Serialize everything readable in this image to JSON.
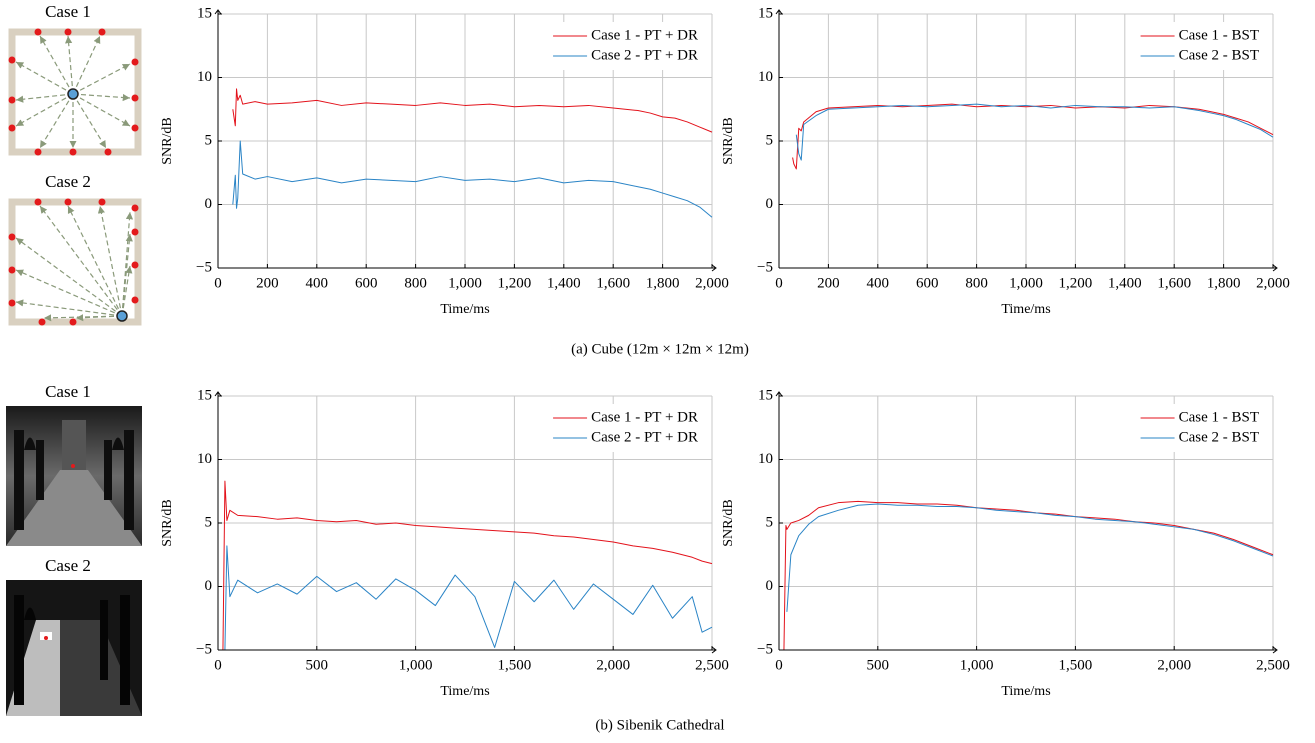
{
  "panels": [
    {
      "caption": "(a)  Cube (12m × 12m × 12m)",
      "cases": [
        "Case 1",
        "Case 2"
      ]
    },
    {
      "caption": "(b)  Sibenik Cathedral",
      "cases": [
        "Case 1",
        "Case 2"
      ]
    }
  ],
  "chart_data": [
    {
      "type": "line",
      "xlabel": "Time/ms",
      "ylabel": "SNR/dB",
      "grid": true,
      "legend": "top-right",
      "xlim": [
        0,
        2000
      ],
      "ylim": [
        -5,
        15
      ],
      "xticks": [
        0,
        200,
        400,
        600,
        800,
        {
          "value": 1000,
          "label": "1,000"
        },
        {
          "value": 1200,
          "label": "1,200"
        },
        {
          "value": 1400,
          "label": "1,400"
        },
        {
          "value": 1600,
          "label": "1,600"
        },
        {
          "value": 1800,
          "label": "1,800"
        },
        {
          "value": 2000,
          "label": "2,000"
        }
      ],
      "yticks": [
        {
          "value": -5,
          "label": "−5"
        },
        0,
        5,
        10,
        15
      ],
      "x": [
        60,
        70,
        75,
        80,
        90,
        100,
        150,
        200,
        300,
        400,
        500,
        600,
        700,
        800,
        900,
        1000,
        1100,
        1200,
        1300,
        1400,
        1500,
        1600,
        1700,
        1750,
        1800,
        1850,
        1900,
        1950,
        2000
      ],
      "series": [
        {
          "name": "Case 1 - PT + DR",
          "color": "#e3121b",
          "values": [
            7.5,
            6.2,
            9.1,
            8.2,
            8.6,
            7.9,
            8.1,
            7.9,
            8.0,
            8.2,
            7.8,
            8.0,
            7.9,
            7.8,
            8.0,
            7.8,
            7.9,
            7.7,
            7.8,
            7.7,
            7.8,
            7.6,
            7.4,
            7.2,
            6.9,
            6.8,
            6.5,
            6.1,
            5.7
          ]
        },
        {
          "name": "Case 2 - PT + DR",
          "color": "#2a84c6",
          "values": [
            0,
            2.3,
            -0.3,
            0.5,
            5.0,
            2.4,
            2.0,
            2.2,
            1.8,
            2.1,
            1.7,
            2.0,
            1.9,
            1.8,
            2.2,
            1.9,
            2.0,
            1.8,
            2.1,
            1.7,
            1.9,
            1.8,
            1.4,
            1.2,
            0.9,
            0.6,
            0.3,
            -0.2,
            -1.0
          ]
        }
      ]
    },
    {
      "type": "line",
      "xlabel": "Time/ms",
      "ylabel": "SNR/dB",
      "grid": true,
      "legend": "top-right",
      "xlim": [
        0,
        2000
      ],
      "ylim": [
        -5,
        15
      ],
      "xticks": [
        0,
        200,
        400,
        600,
        800,
        {
          "value": 1000,
          "label": "1,000"
        },
        {
          "value": 1200,
          "label": "1,200"
        },
        {
          "value": 1400,
          "label": "1,400"
        },
        {
          "value": 1600,
          "label": "1,600"
        },
        {
          "value": 1800,
          "label": "1,800"
        },
        {
          "value": 2000,
          "label": "2,000"
        }
      ],
      "yticks": [
        {
          "value": -5,
          "label": "−5"
        },
        0,
        5,
        10,
        15
      ],
      "x": [
        55,
        60,
        70,
        80,
        90,
        100,
        150,
        200,
        300,
        400,
        500,
        600,
        700,
        800,
        900,
        1000,
        1100,
        1200,
        1300,
        1400,
        1500,
        1600,
        1700,
        1750,
        1800,
        1850,
        1900,
        1950,
        2000
      ],
      "series": [
        {
          "name": "Case 1 - BST",
          "color": "#e3121b",
          "values": [
            3.7,
            3.2,
            2.8,
            6.0,
            5.8,
            6.5,
            7.3,
            7.6,
            7.7,
            7.8,
            7.7,
            7.8,
            7.9,
            7.7,
            7.8,
            7.7,
            7.8,
            7.6,
            7.7,
            7.6,
            7.8,
            7.7,
            7.5,
            7.3,
            7.1,
            6.8,
            6.5,
            6.0,
            5.5
          ]
        },
        {
          "name": "Case 2 - BST",
          "color": "#2a84c6",
          "values": [
            null,
            null,
            5.5,
            4.0,
            3.5,
            6.3,
            7.0,
            7.5,
            7.6,
            7.7,
            7.8,
            7.7,
            7.8,
            7.9,
            7.7,
            7.8,
            7.6,
            7.8,
            7.7,
            7.7,
            7.6,
            7.7,
            7.4,
            7.2,
            7.0,
            6.7,
            6.3,
            5.9,
            5.3
          ]
        }
      ]
    },
    {
      "type": "line",
      "xlabel": "Time/ms",
      "ylabel": "SNR/dB",
      "grid": true,
      "legend": "top-right",
      "xlim": [
        0,
        2500
      ],
      "ylim": [
        -5,
        15
      ],
      "xticks": [
        0,
        500,
        {
          "value": 1000,
          "label": "1,000"
        },
        {
          "value": 1500,
          "label": "1,500"
        },
        {
          "value": 2000,
          "label": "2,000"
        },
        {
          "value": 2500,
          "label": "2,500"
        }
      ],
      "yticks": [
        {
          "value": -5,
          "label": "−5"
        },
        0,
        5,
        10,
        15
      ],
      "x": [
        25,
        35,
        45,
        60,
        100,
        200,
        300,
        400,
        500,
        600,
        700,
        800,
        900,
        1000,
        1100,
        1200,
        1300,
        1400,
        1500,
        1600,
        1700,
        1800,
        1900,
        2000,
        2100,
        2200,
        2300,
        2400,
        2450,
        2500
      ],
      "series": [
        {
          "name": "Case 1 - PT + DR",
          "color": "#e3121b",
          "values": [
            -5,
            8.3,
            5.2,
            6.0,
            5.6,
            5.5,
            5.3,
            5.4,
            5.2,
            5.1,
            5.2,
            4.9,
            5.0,
            4.8,
            4.7,
            4.6,
            4.5,
            4.4,
            4.3,
            4.2,
            4.0,
            3.9,
            3.7,
            3.5,
            3.2,
            3.0,
            2.7,
            2.3,
            2.0,
            1.8
          ]
        },
        {
          "name": "Case 2 - PT + DR",
          "color": "#2a84c6",
          "values": [
            null,
            -5,
            3.2,
            -0.8,
            0.5,
            -0.5,
            0.2,
            -0.6,
            0.8,
            -0.4,
            0.3,
            -1.0,
            0.6,
            -0.3,
            -1.5,
            0.9,
            -0.8,
            -4.8,
            0.4,
            -1.2,
            0.5,
            -1.8,
            0.2,
            -1.0,
            -2.2,
            0.1,
            -2.5,
            -0.8,
            -3.6,
            -3.2
          ]
        }
      ]
    },
    {
      "type": "line",
      "xlabel": "Time/ms",
      "ylabel": "SNR/dB",
      "grid": true,
      "legend": "top-right",
      "xlim": [
        0,
        2500
      ],
      "ylim": [
        -5,
        15
      ],
      "xticks": [
        0,
        500,
        {
          "value": 1000,
          "label": "1,000"
        },
        {
          "value": 1500,
          "label": "1,500"
        },
        {
          "value": 2000,
          "label": "2,000"
        },
        {
          "value": 2500,
          "label": "2,500"
        }
      ],
      "yticks": [
        {
          "value": -5,
          "label": "−5"
        },
        0,
        5,
        10,
        15
      ],
      "x": [
        25,
        35,
        40,
        60,
        100,
        150,
        200,
        300,
        400,
        500,
        600,
        700,
        800,
        900,
        1000,
        1100,
        1200,
        1300,
        1400,
        1500,
        1600,
        1700,
        1800,
        1900,
        2000,
        2100,
        2200,
        2300,
        2400,
        2500
      ],
      "series": [
        {
          "name": "Case 1 - BST",
          "color": "#e3121b",
          "values": [
            -5,
            4.8,
            4.5,
            5.0,
            5.2,
            5.6,
            6.2,
            6.6,
            6.7,
            6.6,
            6.6,
            6.5,
            6.5,
            6.4,
            6.2,
            6.1,
            6.0,
            5.8,
            5.7,
            5.5,
            5.4,
            5.3,
            5.1,
            5.0,
            4.8,
            4.5,
            4.2,
            3.7,
            3.1,
            2.5
          ]
        },
        {
          "name": "Case 2 - BST",
          "color": "#2a84c6",
          "values": [
            null,
            null,
            -2.0,
            2.5,
            4.0,
            4.9,
            5.5,
            6.0,
            6.4,
            6.5,
            6.4,
            6.4,
            6.3,
            6.3,
            6.2,
            6.0,
            5.9,
            5.8,
            5.6,
            5.5,
            5.3,
            5.2,
            5.1,
            4.9,
            4.7,
            4.5,
            4.1,
            3.6,
            3.0,
            2.4
          ]
        }
      ]
    }
  ]
}
